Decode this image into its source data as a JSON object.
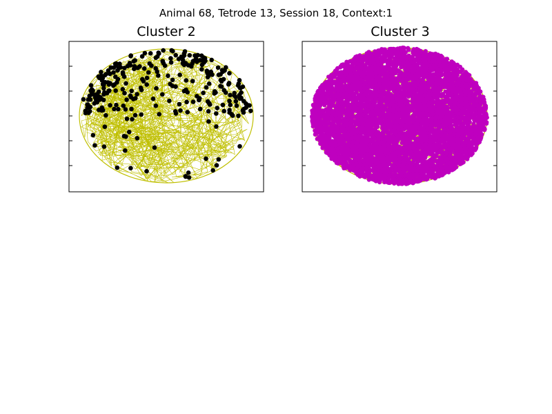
{
  "figure": {
    "title": "Animal 68, Tetrode 13, Session 18, Context:1",
    "background": "#ffffff"
  },
  "chart_data": [
    {
      "type": "scatter",
      "title": "Cluster 2",
      "path_color": "#bfbf00",
      "spike_color": "#000000",
      "arena": "ellipse",
      "grid": false,
      "spike_density": "high",
      "spike_region": "concentrated in upper half and along the arena edge",
      "approx_spike_count": 300
    },
    {
      "type": "scatter",
      "title": "Cluster 3",
      "path_color": "#bfbf00",
      "spike_color": "#bf00bf",
      "arena": "ellipse",
      "grid": false,
      "spike_density": "very high",
      "spike_region": "covers entire arena; only small patches of path visible",
      "approx_spike_count": 6000
    }
  ]
}
